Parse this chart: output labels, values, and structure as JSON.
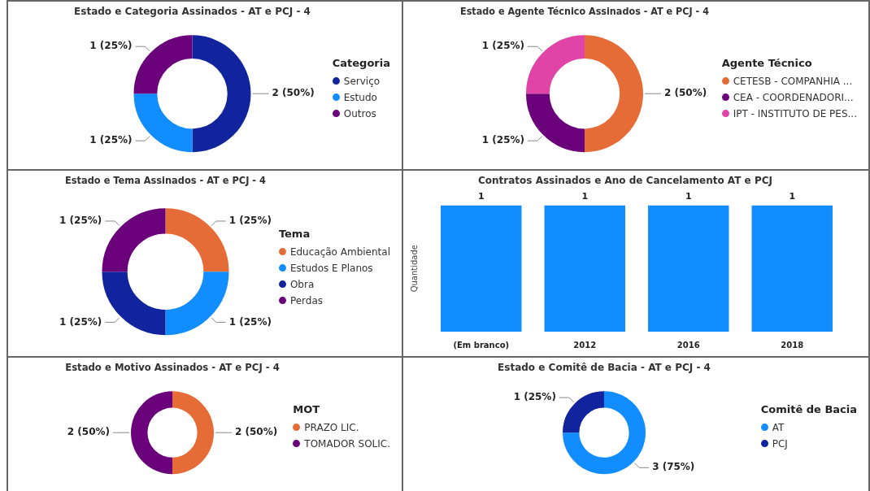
{
  "chart_data": [
    {
      "type": "donut",
      "title": "Estado e Categoria Assinados - AT e PCJ - 4",
      "legend_title": "Categoria",
      "legend": "right",
      "categories": [
        "Serviço",
        "Estudo",
        "Outros"
      ],
      "values": [
        2,
        1,
        1
      ],
      "colors": [
        "#12239e",
        "#118dff",
        "#6b007b"
      ],
      "value_labels": [
        "2 (50%)",
        "1 (25%)",
        "1 (25%)"
      ]
    },
    {
      "type": "donut",
      "title": "Estado e Agente Técnico Assinados - AT e PCJ - 4",
      "legend_title": "Agente Técnico",
      "legend": "right",
      "categories": [
        "CETESB - COMPANHIA ...",
        "CEA - COORDENADORI...",
        "IPT - INSTITUTO DE PES..."
      ],
      "values": [
        2,
        1,
        1
      ],
      "colors": [
        "#e66c37",
        "#6b007b",
        "#e044a7"
      ],
      "value_labels": [
        "2 (50%)",
        "1 (25%)",
        "1 (25%)"
      ]
    },
    {
      "type": "donut",
      "title": "Estado e Tema Assinados - AT e PCJ - 4",
      "legend_title": "Tema",
      "legend": "right",
      "categories": [
        "Educação Ambiental",
        "Estudos E Planos",
        "Obra",
        "Perdas"
      ],
      "values": [
        1,
        1,
        1,
        1
      ],
      "colors": [
        "#e66c37",
        "#118dff",
        "#12239e",
        "#6b007b"
      ],
      "value_labels": [
        "1 (25%)",
        "1 (25%)",
        "1 (25%)",
        "1 (25%)"
      ]
    },
    {
      "type": "bar",
      "title": "Contratos Assinados e Ano de Cancelamento AT e PCJ",
      "ylabel": "Quantidade",
      "categories": [
        "(Em branco)",
        "2012",
        "2016",
        "2018"
      ],
      "values": [
        1,
        1,
        1,
        1
      ],
      "color": "#118dff",
      "data_labels": true,
      "tick_labels": "x"
    },
    {
      "type": "donut",
      "title": "Estado e Motivo Assinados - AT e PCJ - 4",
      "legend_title": "MOT",
      "legend": "right",
      "categories": [
        "PRAZO LIC.",
        "TOMADOR SOLIC."
      ],
      "values": [
        2,
        2
      ],
      "colors": [
        "#e66c37",
        "#6b007b"
      ],
      "value_labels": [
        "2 (50%)",
        "2 (50%)"
      ]
    },
    {
      "type": "donut",
      "title": "Estado e Comitê de Bacia - AT e PCJ - 4",
      "legend_title": "Comitê de Bacia",
      "legend": "right",
      "categories": [
        "AT",
        "PCJ"
      ],
      "values": [
        3,
        1
      ],
      "colors": [
        "#118dff",
        "#12239e"
      ],
      "value_labels": [
        "3 (75%)",
        "1 (25%)"
      ]
    }
  ]
}
